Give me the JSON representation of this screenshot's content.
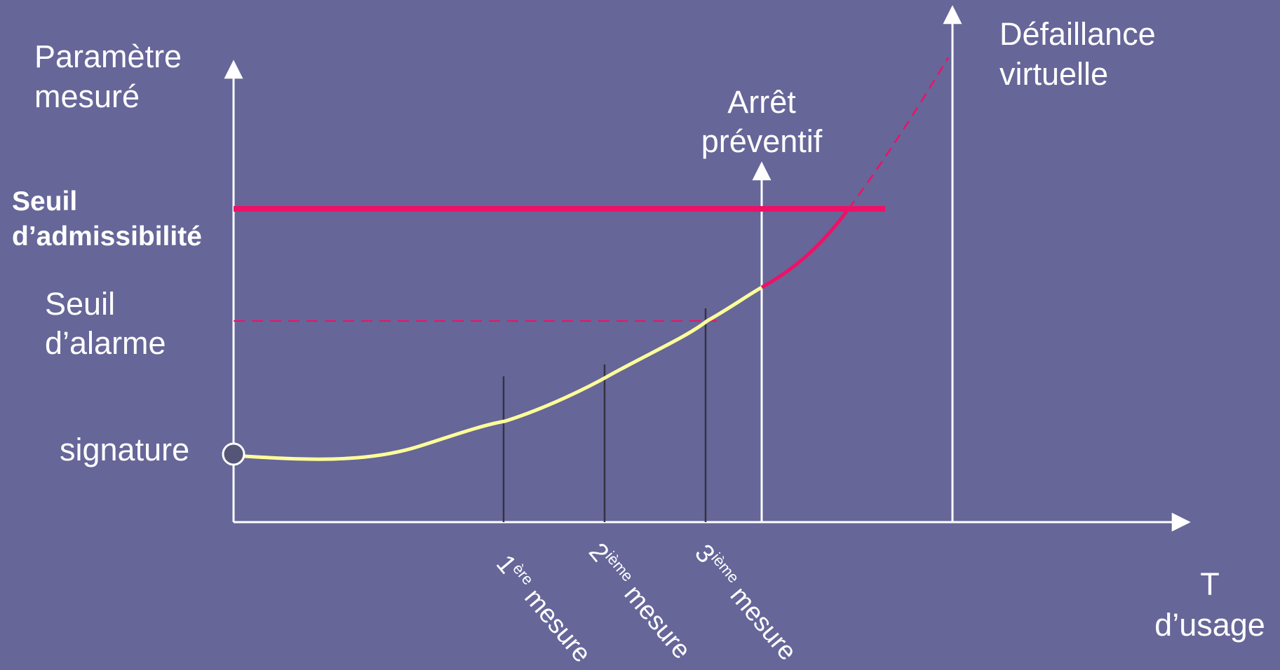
{
  "colors": {
    "background": "#666699",
    "axis": "#ffffff",
    "curve": "#ffff99",
    "danger": "#ee1166",
    "measure_line": "#333344"
  },
  "axis_labels": {
    "y_line1": "Paramètre",
    "y_line2": "mesuré",
    "x_line1": "T",
    "x_line2": "d’usage"
  },
  "thresholds": {
    "admissibility_line1": "Seuil",
    "admissibility_line2": "d’admissibilité",
    "alarm_line1": "Seuil",
    "alarm_line2": "d’alarme"
  },
  "signature_label": "signature",
  "events": {
    "preventive_stop_line1": "Arrêt",
    "preventive_stop_line2": "préventif",
    "virtual_failure_line1": "Défaillance",
    "virtual_failure_line2": "virtuelle"
  },
  "measurements": [
    {
      "num": "1",
      "sup": "ère",
      "word": " mesure"
    },
    {
      "num": "2",
      "sup": "ième",
      "word": " mesure"
    },
    {
      "num": "3",
      "sup": "ième",
      "word": " mesure"
    }
  ]
}
